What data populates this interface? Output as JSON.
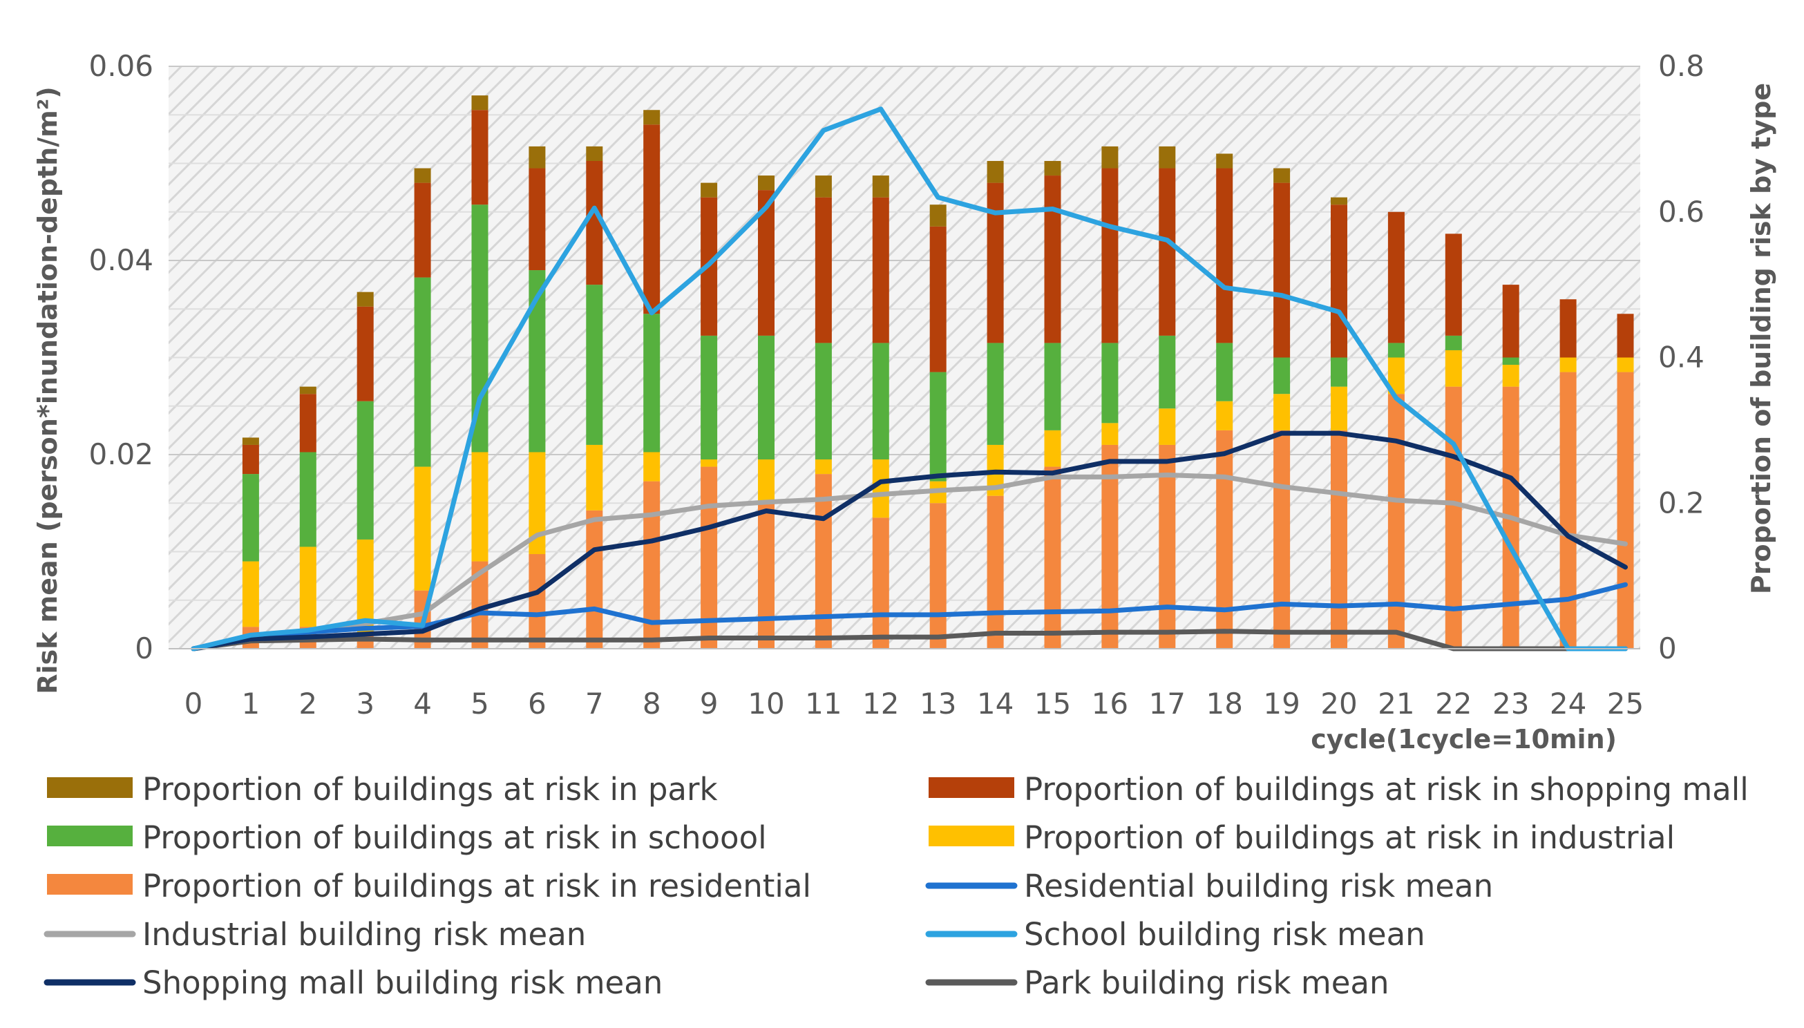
{
  "chart_data": {
    "type": "bar+line",
    "x": [
      0,
      1,
      2,
      3,
      4,
      5,
      6,
      7,
      8,
      9,
      10,
      11,
      12,
      13,
      14,
      15,
      16,
      17,
      18,
      19,
      20,
      21,
      22,
      23,
      24,
      25
    ],
    "xlabel": "cycle(1cycle=10min)",
    "ylabel_left": "Risk mean (person*inundation-depth/m²)",
    "ylabel_right": "Proportion of building risk by type",
    "ylim_left": [
      0,
      0.06
    ],
    "ylim_right": [
      0,
      0.8
    ],
    "yticks_left": [
      {
        "value": 0,
        "label": "0"
      },
      {
        "value": 0.02,
        "label": "0.02"
      },
      {
        "value": 0.04,
        "label": "0.04"
      },
      {
        "value": 0.06,
        "label": "0.06"
      }
    ],
    "yticks_right": [
      {
        "value": 0,
        "label": "0"
      },
      {
        "value": 0.2,
        "label": "0.2"
      },
      {
        "value": 0.4,
        "label": "0.4"
      },
      {
        "value": 0.6,
        "label": "0.6"
      },
      {
        "value": 0.8,
        "label": "0.8"
      }
    ],
    "bar_series": [
      {
        "name": "Proportion of buildings at risk in residential",
        "color": "#F4873E",
        "values": [
          0,
          0.03,
          0.03,
          0.02,
          0.08,
          0.12,
          0.13,
          0.19,
          0.23,
          0.25,
          0.2,
          0.24,
          0.18,
          0.2,
          0.21,
          0.25,
          0.28,
          0.28,
          0.3,
          0.3,
          0.3,
          0.35,
          0.36,
          0.36,
          0.38,
          0.38
        ]
      },
      {
        "name": "Proportion of buildings at risk in industrial",
        "color": "#FFC000",
        "values": [
          0,
          0.09,
          0.11,
          0.13,
          0.17,
          0.15,
          0.14,
          0.09,
          0.04,
          0.01,
          0.06,
          0.02,
          0.08,
          0.03,
          0.07,
          0.05,
          0.03,
          0.05,
          0.04,
          0.05,
          0.06,
          0.05,
          0.05,
          0.03,
          0.02,
          0.02
        ]
      },
      {
        "name": "Proportion of buildings at risk in schoool",
        "color": "#56B03E",
        "values": [
          0,
          0.12,
          0.13,
          0.19,
          0.26,
          0.34,
          0.25,
          0.22,
          0.19,
          0.17,
          0.17,
          0.16,
          0.16,
          0.15,
          0.14,
          0.12,
          0.11,
          0.1,
          0.08,
          0.05,
          0.04,
          0.02,
          0.02,
          0.01,
          0,
          0
        ]
      },
      {
        "name": "Proportion of buildings at risk in shopping mall",
        "color": "#B5400A",
        "values": [
          0,
          0.04,
          0.08,
          0.13,
          0.13,
          0.13,
          0.14,
          0.17,
          0.26,
          0.19,
          0.2,
          0.2,
          0.2,
          0.2,
          0.22,
          0.23,
          0.24,
          0.23,
          0.24,
          0.24,
          0.21,
          0.18,
          0.14,
          0.1,
          0.08,
          0.06
        ]
      },
      {
        "name": "Proportion of buildings at risk in park",
        "color": "#9A6F0A",
        "values": [
          0,
          0.01,
          0.01,
          0.02,
          0.02,
          0.02,
          0.03,
          0.02,
          0.02,
          0.02,
          0.02,
          0.03,
          0.03,
          0.03,
          0.03,
          0.02,
          0.03,
          0.03,
          0.02,
          0.02,
          0.01,
          0,
          0,
          0,
          0,
          0
        ]
      }
    ],
    "line_series": [
      {
        "name": "Residential building risk mean",
        "color": "#1F72D0",
        "values": [
          0,
          0.0013,
          0.0017,
          0.0021,
          0.0023,
          0.0037,
          0.0035,
          0.0041,
          0.0027,
          0.0029,
          0.0031,
          0.0033,
          0.0035,
          0.0035,
          0.0037,
          0.0038,
          0.0039,
          0.0043,
          0.004,
          0.0046,
          0.0044,
          0.0046,
          0.0041,
          0.0046,
          0.0051,
          0.0066
        ]
      },
      {
        "name": "Industrial building risk mean",
        "color": "#A6A6A6",
        "values": [
          0,
          0.001,
          0.0018,
          0.0026,
          0.0036,
          0.0078,
          0.0117,
          0.0133,
          0.0138,
          0.0147,
          0.0151,
          0.0154,
          0.0159,
          0.0163,
          0.0166,
          0.0177,
          0.0177,
          0.0179,
          0.0177,
          0.0167,
          0.016,
          0.0153,
          0.015,
          0.0135,
          0.0117,
          0.0108
        ]
      },
      {
        "name": "School building risk mean",
        "color": "#2DA3E0",
        "values": [
          0,
          0.0014,
          0.0019,
          0.0029,
          0.0024,
          0.0258,
          0.0362,
          0.0454,
          0.0346,
          0.0396,
          0.0455,
          0.0534,
          0.0556,
          0.0465,
          0.0449,
          0.0453,
          0.0435,
          0.0421,
          0.0372,
          0.0364,
          0.0347,
          0.0258,
          0.0211,
          0.0104,
          0,
          0
        ]
      },
      {
        "name": "Shopping mall building risk mean",
        "color": "#0F2F66",
        "values": [
          0,
          0.001,
          0.0012,
          0.0015,
          0.0018,
          0.0041,
          0.0058,
          0.0102,
          0.0111,
          0.0125,
          0.0142,
          0.0134,
          0.0172,
          0.0178,
          0.0182,
          0.0181,
          0.0193,
          0.0193,
          0.0201,
          0.0222,
          0.0222,
          0.0214,
          0.0198,
          0.0176,
          0.0116,
          0.0084
        ]
      },
      {
        "name": "Park building risk mean",
        "color": "#5A5A5A",
        "values": [
          0,
          0.0008,
          0.0009,
          0.001,
          0.0009,
          0.0009,
          0.0009,
          0.0009,
          0.0009,
          0.0011,
          0.0011,
          0.0011,
          0.0012,
          0.0012,
          0.0016,
          0.0016,
          0.0017,
          0.0017,
          0.0018,
          0.0017,
          0.0017,
          0.0017,
          0,
          0,
          0,
          0
        ]
      }
    ],
    "legend": [
      {
        "label": "Proportion of buildings at risk in park",
        "kind": "box",
        "color": "#9A6F0A"
      },
      {
        "label": "Proportion of buildings at risk in shopping mall",
        "kind": "box",
        "color": "#B5400A"
      },
      {
        "label": "Proportion of buildings at risk in schoool",
        "kind": "box",
        "color": "#56B03E"
      },
      {
        "label": "Proportion of buildings at risk in industrial",
        "kind": "box",
        "color": "#FFC000"
      },
      {
        "label": "Proportion of buildings at risk in residential",
        "kind": "box",
        "color": "#F4873E"
      },
      {
        "label": "Residential building risk mean",
        "kind": "line",
        "color": "#1F72D0"
      },
      {
        "label": "Industrial building risk mean",
        "kind": "line",
        "color": "#A6A6A6"
      },
      {
        "label": "School building risk mean",
        "kind": "line",
        "color": "#2DA3E0"
      },
      {
        "label": "Shopping mall building risk mean",
        "kind": "line",
        "color": "#0F2F66"
      },
      {
        "label": "Park building risk mean",
        "kind": "line",
        "color": "#5A5A5A"
      }
    ],
    "legend_position": "bottom",
    "grid": true
  }
}
